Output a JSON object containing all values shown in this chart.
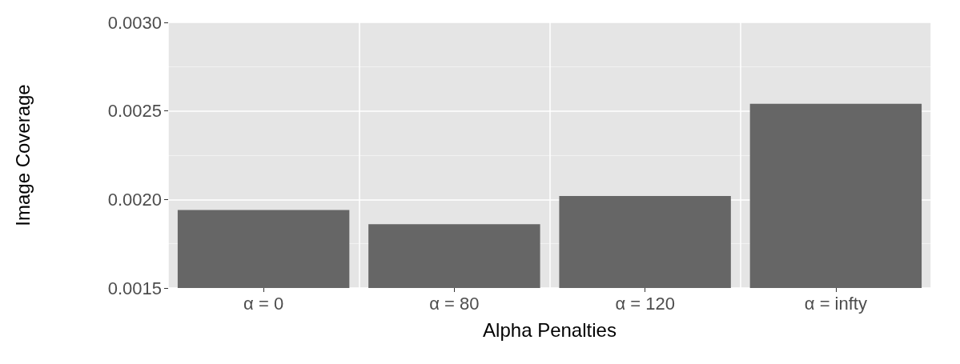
{
  "chart_data": {
    "type": "bar",
    "xlabel": "Alpha Penalties",
    "ylabel": "Image Coverage",
    "categories": [
      "α = 0",
      "α = 80",
      "α = 120",
      "α = infty"
    ],
    "values": [
      0.00194,
      0.00186,
      0.00202,
      0.00254
    ],
    "color": "#666666",
    "ylim": [
      0.0015,
      0.003
    ],
    "yticks": [
      {
        "value": 0.0015,
        "label": "0.0015"
      },
      {
        "value": 0.002,
        "label": "0.0020"
      },
      {
        "value": 0.0025,
        "label": "0.0025"
      },
      {
        "value": 0.003,
        "label": "0.0030"
      }
    ],
    "grid": true
  }
}
